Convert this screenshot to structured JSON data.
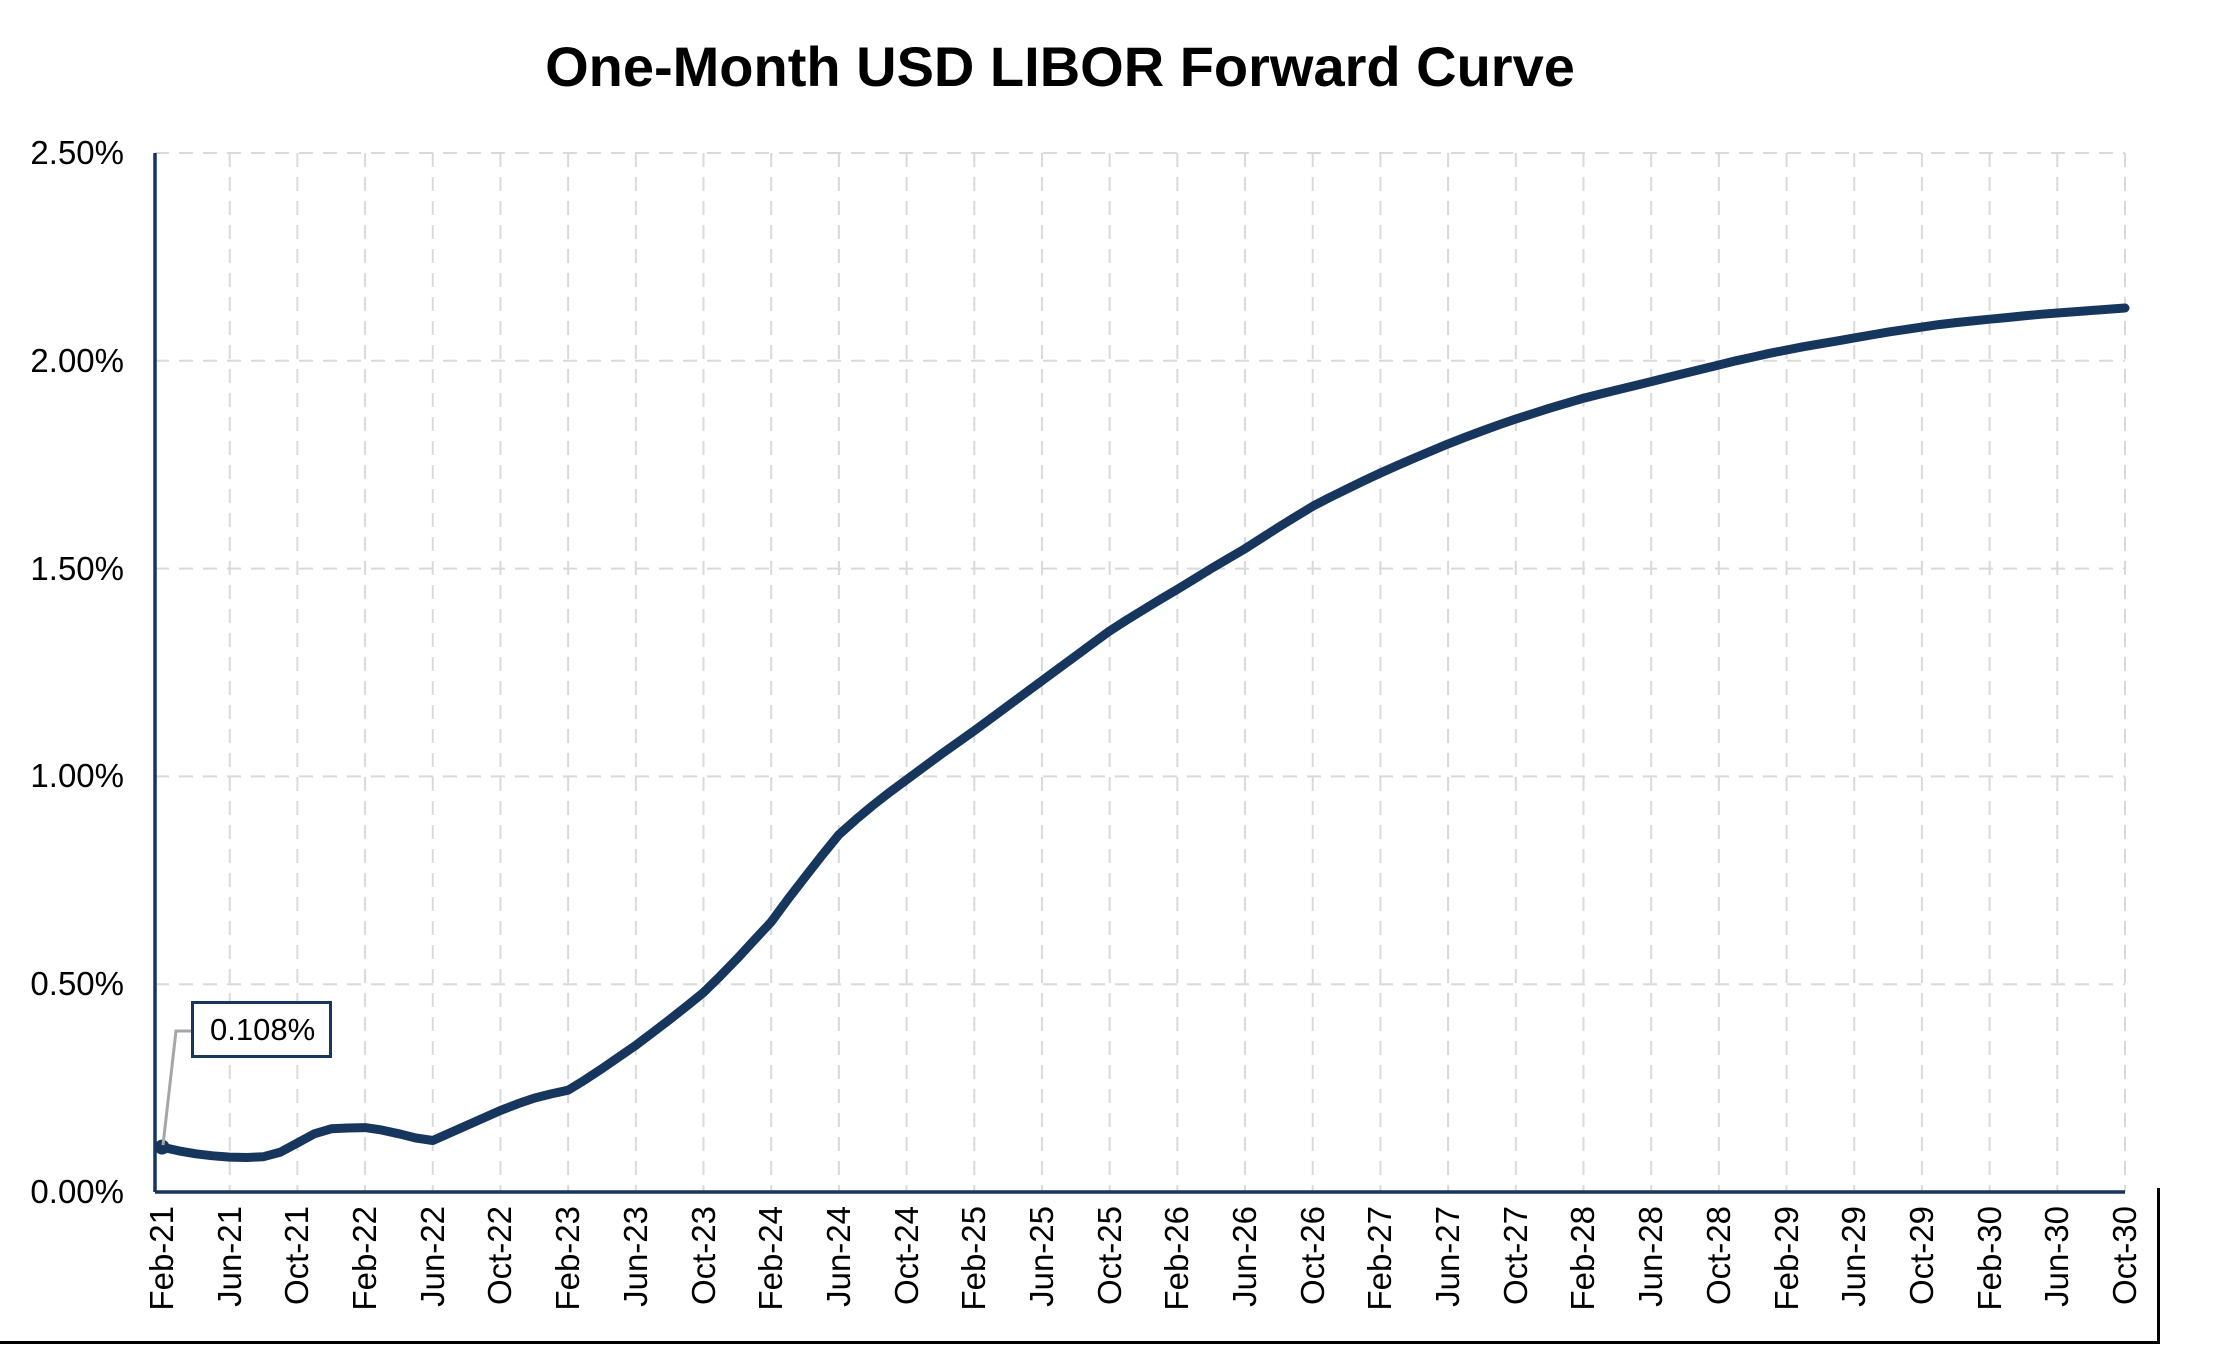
{
  "title": "One-Month USD LIBOR Forward Curve",
  "annotation": {
    "label": "0.108%",
    "target_point": "Feb-21"
  },
  "colors": {
    "line": "#17365D",
    "axis": "#17365D",
    "grid": "#D9D9D9",
    "leader": "#A6A6A6",
    "text": "#000000",
    "frame": "#000000",
    "background": "#FFFFFF"
  },
  "y_axis": {
    "tick_labels": [
      "0.00%",
      "0.50%",
      "1.00%",
      "1.50%",
      "2.00%",
      "2.50%"
    ],
    "min": 0.0,
    "max": 2.5,
    "step": 0.5
  },
  "x_axis": {
    "tick_labels": [
      "Feb-21",
      "Jun-21",
      "Oct-21",
      "Feb-22",
      "Jun-22",
      "Oct-22",
      "Feb-23",
      "Jun-23",
      "Oct-23",
      "Feb-24",
      "Jun-24",
      "Oct-24",
      "Feb-25",
      "Jun-25",
      "Oct-25",
      "Feb-26",
      "Jun-26",
      "Oct-26",
      "Feb-27",
      "Jun-27",
      "Oct-27",
      "Feb-28",
      "Jun-28",
      "Oct-28",
      "Feb-29",
      "Jun-29",
      "Oct-29",
      "Feb-30",
      "Jun-30",
      "Oct-30"
    ]
  },
  "chart_data": {
    "type": "line",
    "title": "One-Month USD LIBOR Forward Curve",
    "xlabel": "",
    "ylabel": "",
    "unit": "percent",
    "frequency": "monthly",
    "first_point": "Feb-21",
    "last_point": "Oct-30",
    "ylim": [
      0.0,
      2.5
    ],
    "grid": "dashed",
    "legend": "none",
    "marker_on_first_point": true,
    "annotation": {
      "text": "0.108%",
      "applies_to": "Feb-21"
    },
    "tick_labels": [
      "Feb-21",
      "Jun-21",
      "Oct-21",
      "Feb-22",
      "Jun-22",
      "Oct-22",
      "Feb-23",
      "Jun-23",
      "Oct-23",
      "Feb-24",
      "Jun-24",
      "Oct-24",
      "Feb-25",
      "Jun-25",
      "Oct-25",
      "Feb-26",
      "Jun-26",
      "Oct-26",
      "Feb-27",
      "Jun-27",
      "Oct-27",
      "Feb-28",
      "Jun-28",
      "Oct-28",
      "Feb-29",
      "Jun-29",
      "Oct-29",
      "Feb-30",
      "Jun-30",
      "Oct-30"
    ],
    "values": [
      0.108,
      0.099,
      0.092,
      0.087,
      0.084,
      0.083,
      0.085,
      0.096,
      0.118,
      0.14,
      0.152,
      0.154,
      0.155,
      0.149,
      0.14,
      0.13,
      0.124,
      0.142,
      0.16,
      0.178,
      0.196,
      0.212,
      0.226,
      0.236,
      0.245,
      0.27,
      0.297,
      0.325,
      0.353,
      0.384,
      0.415,
      0.447,
      0.48,
      0.52,
      0.562,
      0.606,
      0.65,
      0.705,
      0.758,
      0.81,
      0.86,
      0.896,
      0.93,
      0.962,
      0.992,
      1.022,
      1.052,
      1.081,
      1.11,
      1.14,
      1.17,
      1.2,
      1.23,
      1.26,
      1.29,
      1.32,
      1.35,
      1.376,
      1.401,
      1.426,
      1.45,
      1.475,
      1.5,
      1.524,
      1.548,
      1.574,
      1.6,
      1.625,
      1.65,
      1.671,
      1.691,
      1.711,
      1.73,
      1.748,
      1.766,
      1.783,
      1.8,
      1.816,
      1.831,
      1.846,
      1.86,
      1.873,
      1.886,
      1.898,
      1.91,
      1.92,
      1.93,
      1.94,
      1.95,
      1.96,
      1.97,
      1.98,
      1.99,
      2.0,
      2.009,
      2.018,
      2.026,
      2.034,
      2.041,
      2.048,
      2.055,
      2.062,
      2.069,
      2.075,
      2.081,
      2.087,
      2.092,
      2.096,
      2.1,
      2.104,
      2.108,
      2.112,
      2.115,
      2.118,
      2.121,
      2.124,
      2.127
    ]
  }
}
